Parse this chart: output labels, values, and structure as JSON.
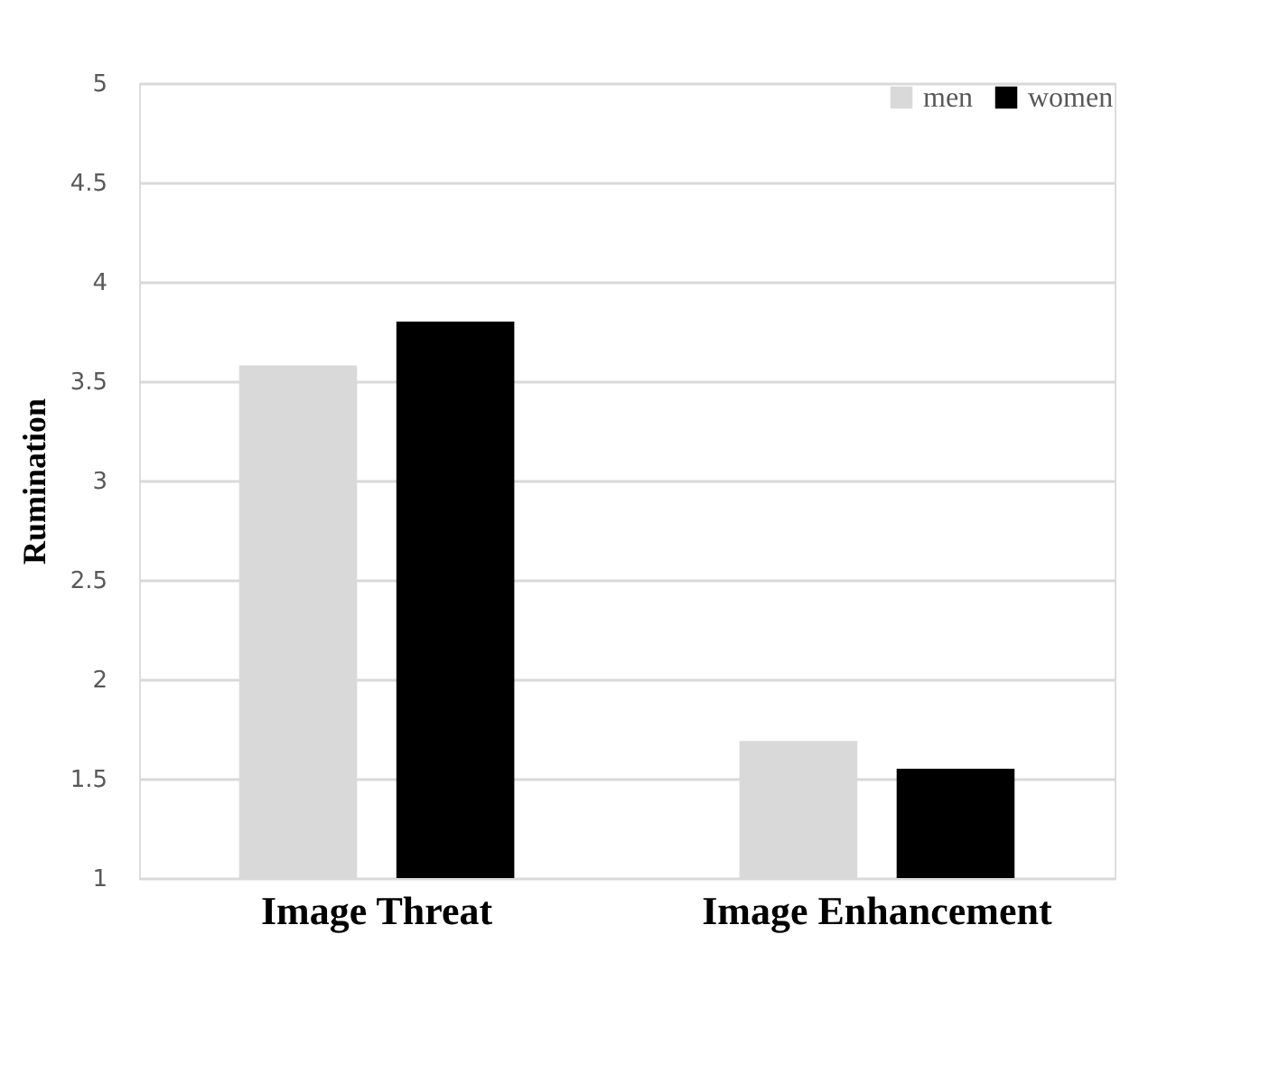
{
  "chart_data": {
    "type": "bar",
    "ylabel": "Rumination",
    "categories": [
      "Image Threat",
      "Image Enhancement"
    ],
    "series": [
      {
        "name": "men",
        "color": "#d9d9d9",
        "values": [
          3.58,
          1.69
        ]
      },
      {
        "name": "women",
        "color": "#000000",
        "values": [
          3.8,
          1.55
        ]
      }
    ],
    "ylim": [
      1,
      5
    ],
    "yticks": [
      1,
      1.5,
      2,
      2.5,
      3,
      3.5,
      4,
      4.5,
      5
    ],
    "grid": "y",
    "legend": "top right"
  }
}
